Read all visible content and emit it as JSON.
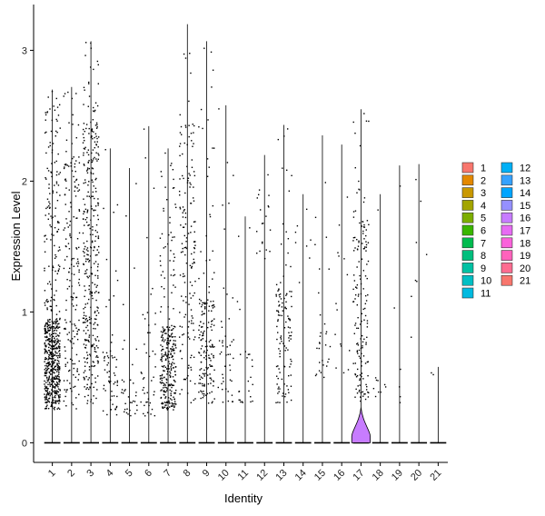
{
  "chart_data": {
    "type": "violin",
    "xlabel": "Identity",
    "ylabel": "Expression Level",
    "ylim": [
      -0.15,
      3.35
    ],
    "yticks": [
      0,
      1,
      2,
      3
    ],
    "grid": false,
    "legend_position": "right",
    "legend_columns": 2,
    "categories": [
      "1",
      "2",
      "3",
      "4",
      "5",
      "6",
      "7",
      "8",
      "9",
      "10",
      "11",
      "12",
      "13",
      "14",
      "15",
      "16",
      "17",
      "18",
      "19",
      "20",
      "21"
    ],
    "colors": [
      "#F8766D",
      "#E58700",
      "#C99800",
      "#A3A500",
      "#6BB100",
      "#00BA38",
      "#00BF7D",
      "#00C0AF",
      "#00BCD8",
      "#00B0F6",
      "#619CFF",
      "#B983FF",
      "#E76BF3",
      "#FD61D1",
      "#FF67A4",
      "#F8766D",
      "#E58700",
      "#C99800",
      "#A3A500",
      "#6BB100",
      "#00BA38"
    ],
    "legend_colors": [
      "#F8766D",
      "#E48800",
      "#C99800",
      "#A3A500",
      "#7CAE00",
      "#39B600",
      "#00BB4E",
      "#00BF7D",
      "#00C1A3",
      "#00BFC4",
      "#00BAE0",
      "#00B0F6",
      "#35A2FF",
      "#00A5FF",
      "#9590FF",
      "#C77CFF",
      "#E76BF3",
      "#FA62DB",
      "#FF62BC",
      "#FF6C90",
      "#F8766D"
    ],
    "series": [
      {
        "name": "1",
        "max": 2.7,
        "zero_fraction": 0.55,
        "point_count": 620,
        "core": [
          0.3,
          0.95
        ],
        "spread": [
          0.25,
          2.7
        ]
      },
      {
        "name": "2",
        "max": 2.72,
        "zero_fraction": 0.7,
        "point_count": 190,
        "core": [
          0.4,
          2.2
        ],
        "spread": [
          0.25,
          2.72
        ]
      },
      {
        "name": "3",
        "max": 3.07,
        "zero_fraction": 0.55,
        "point_count": 360,
        "core": [
          0.4,
          2.45
        ],
        "spread": [
          0.3,
          3.07
        ]
      },
      {
        "name": "4",
        "max": 2.25,
        "zero_fraction": 0.85,
        "point_count": 60,
        "core": [
          0.2,
          0.7
        ],
        "spread": [
          0.2,
          2.25
        ]
      },
      {
        "name": "5",
        "max": 2.1,
        "zero_fraction": 0.9,
        "point_count": 35,
        "core": [
          0.2,
          0.5
        ],
        "spread": [
          0.2,
          2.1
        ]
      },
      {
        "name": "6",
        "max": 2.42,
        "zero_fraction": 0.9,
        "point_count": 45,
        "core": [
          0.2,
          1.0
        ],
        "spread": [
          0.2,
          2.42
        ]
      },
      {
        "name": "7",
        "max": 2.25,
        "zero_fraction": 0.6,
        "point_count": 300,
        "core": [
          0.25,
          0.9
        ],
        "spread": [
          0.25,
          2.25
        ]
      },
      {
        "name": "8",
        "max": 3.2,
        "zero_fraction": 0.7,
        "point_count": 160,
        "core": [
          0.4,
          2.5
        ],
        "spread": [
          0.3,
          3.2
        ]
      },
      {
        "name": "9",
        "max": 3.07,
        "zero_fraction": 0.7,
        "point_count": 170,
        "core": [
          0.3,
          1.1
        ],
        "spread": [
          0.3,
          3.07
        ]
      },
      {
        "name": "10",
        "max": 2.58,
        "zero_fraction": 0.88,
        "point_count": 45,
        "core": [
          0.3,
          0.8
        ],
        "spread": [
          0.3,
          2.58
        ]
      },
      {
        "name": "11",
        "max": 1.73,
        "zero_fraction": 0.9,
        "point_count": 25,
        "core": [
          0.3,
          0.7
        ],
        "spread": [
          0.3,
          1.73
        ]
      },
      {
        "name": "12",
        "max": 2.2,
        "zero_fraction": 0.92,
        "point_count": 20,
        "core": [
          1.4,
          2.2
        ],
        "spread": [
          1.4,
          2.2
        ]
      },
      {
        "name": "13",
        "max": 2.43,
        "zero_fraction": 0.8,
        "point_count": 120,
        "core": [
          0.3,
          1.2
        ],
        "spread": [
          0.3,
          2.43
        ]
      },
      {
        "name": "14",
        "max": 1.9,
        "zero_fraction": 0.95,
        "point_count": 8,
        "core": [
          1.0,
          1.9
        ],
        "spread": [
          0.9,
          1.9
        ]
      },
      {
        "name": "15",
        "max": 2.35,
        "zero_fraction": 0.9,
        "point_count": 30,
        "core": [
          0.5,
          1.2
        ],
        "spread": [
          0.5,
          2.35
        ]
      },
      {
        "name": "16",
        "max": 2.28,
        "zero_fraction": 0.95,
        "point_count": 15,
        "core": [
          0.4,
          1.8
        ],
        "spread": [
          0.4,
          2.28
        ]
      },
      {
        "name": "17",
        "max": 2.55,
        "zero_fraction": 0.5,
        "point_count": 160,
        "core": [
          0.3,
          1.8
        ],
        "spread": [
          0.3,
          2.55
        ]
      },
      {
        "name": "18",
        "max": 1.9,
        "zero_fraction": 0.95,
        "point_count": 10,
        "core": [
          0.35,
          0.5
        ],
        "spread": [
          0.35,
          1.9
        ]
      },
      {
        "name": "19",
        "max": 2.12,
        "zero_fraction": 0.97,
        "point_count": 6,
        "core": [
          0.2,
          0.9
        ],
        "spread": [
          0.2,
          2.12
        ]
      },
      {
        "name": "20",
        "max": 2.13,
        "zero_fraction": 0.97,
        "point_count": 8,
        "core": [
          0.8,
          2.13
        ],
        "spread": [
          0.8,
          2.13
        ]
      },
      {
        "name": "21",
        "max": 0.58,
        "zero_fraction": 0.98,
        "point_count": 2,
        "core": [
          0.5,
          0.58
        ],
        "spread": [
          0.5,
          0.58
        ]
      }
    ],
    "visible_violin_body": {
      "category": "17",
      "color": "#C77CFF",
      "max_density_at": 0.05,
      "top": 0.27
    }
  }
}
